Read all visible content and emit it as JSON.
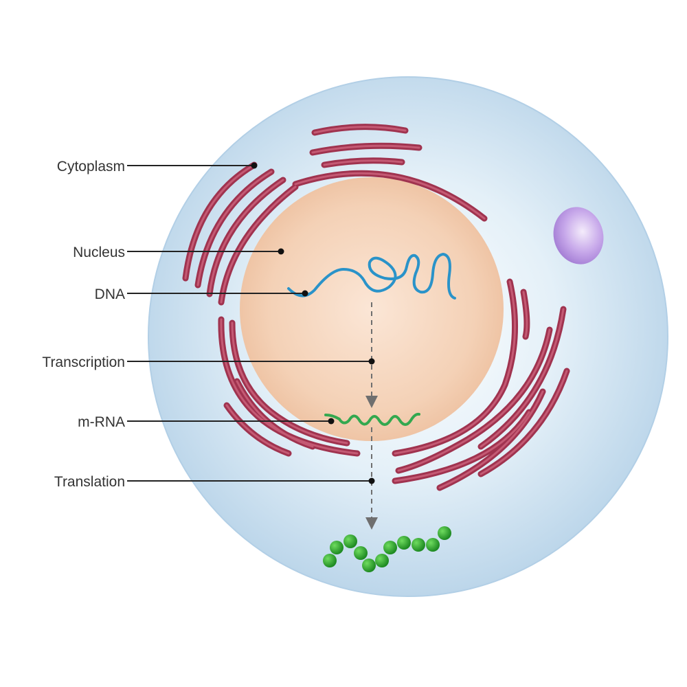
{
  "labels": {
    "cytoplasm": "Cytoplasm",
    "nucleus": "Nucleus",
    "dna": "DNA",
    "transcription": "Transcription",
    "mrna": "m-RNA",
    "translation": "Translation"
  },
  "colors": {
    "cell_fill": "#c9dfef",
    "cell_edge": "#b2cfe6",
    "nucleus_fill": "#f3cdb0",
    "er_stroke": "#a0334f",
    "er_core": "#c45a74",
    "vesicle": "#b18ae0",
    "dna": "#2a93c9",
    "mrna": "#33a84f",
    "protein": "#2a9a2a",
    "arrow": "#6f6f6f",
    "leader": "#222222"
  },
  "icons": [
    "cell-icon",
    "nucleus-icon",
    "endoplasmic-reticulum-icon",
    "vesicle-icon",
    "dna-strand-icon",
    "mrna-strand-icon",
    "protein-chain-icon"
  ]
}
